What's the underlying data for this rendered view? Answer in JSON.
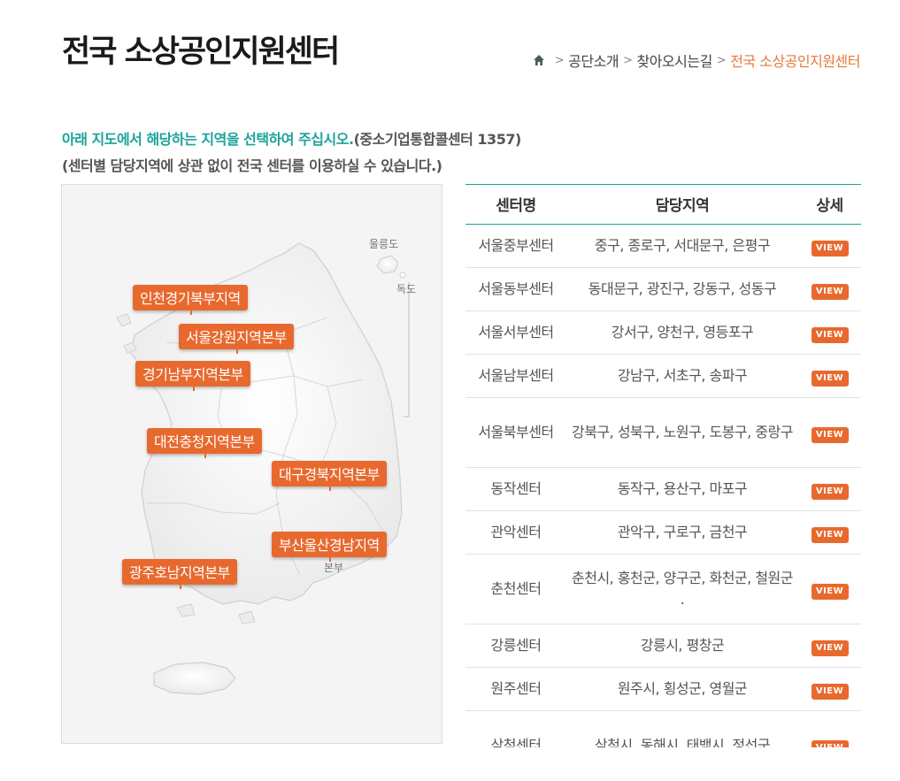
{
  "page": {
    "title": "전국 소상공인지원센터"
  },
  "breadcrumb": {
    "home_icon": "home-icon",
    "items": [
      "공단소개",
      "찾아오시는길"
    ],
    "current": "전국 소상공인지원센터"
  },
  "intro": {
    "highlight": "아래 지도에서 해당하는 지역을 선택하여 주십시오.",
    "call_center": "(중소기업통합콜센터 1357)",
    "note": "(센터별 담당지역에 상관 없이 전국 센터를 이용하실 수 있습니다.)"
  },
  "map": {
    "islands": [
      "울릉도",
      "독도"
    ],
    "partial_label": "본부",
    "regions": [
      "인천경기북부지역",
      "서울강원지역본부",
      "경기남부지역본부",
      "대전충청지역본부",
      "대구경북지역본부",
      "부산울산경남지역",
      "광주호남지역본부"
    ]
  },
  "table": {
    "headers": [
      "센터명",
      "담당지역",
      "상세"
    ],
    "view_label": "VIEW",
    "rows": [
      {
        "name": "서울중부센터",
        "area": "중구, 종로구, 서대문구, 은평구"
      },
      {
        "name": "서울동부센터",
        "area": "동대문구, 광진구, 강동구, 성동구"
      },
      {
        "name": "서울서부센터",
        "area": "강서구, 양천구, 영등포구"
      },
      {
        "name": "서울남부센터",
        "area": "강남구, 서초구, 송파구"
      },
      {
        "name": "서울북부센터",
        "area": "강북구, 성북구, 노원구, 도봉구, 중랑구"
      },
      {
        "name": "동작센터",
        "area": "동작구, 용산구, 마포구"
      },
      {
        "name": "관악센터",
        "area": "관악구, 구로구, 금천구"
      },
      {
        "name": "춘천센터",
        "area": "춘천시, 홍천군, 양구군, 화천군, 철원군 ."
      },
      {
        "name": "강릉센터",
        "area": "강릉시, 평창군"
      },
      {
        "name": "원주센터",
        "area": "원주시, 횡성군, 영월군"
      },
      {
        "name": "삼척센터",
        "area": "삼척시, 동해시, 태백시, 정선군"
      }
    ]
  },
  "colors": {
    "accent": "#e8692e",
    "teal": "#1aa39a"
  }
}
